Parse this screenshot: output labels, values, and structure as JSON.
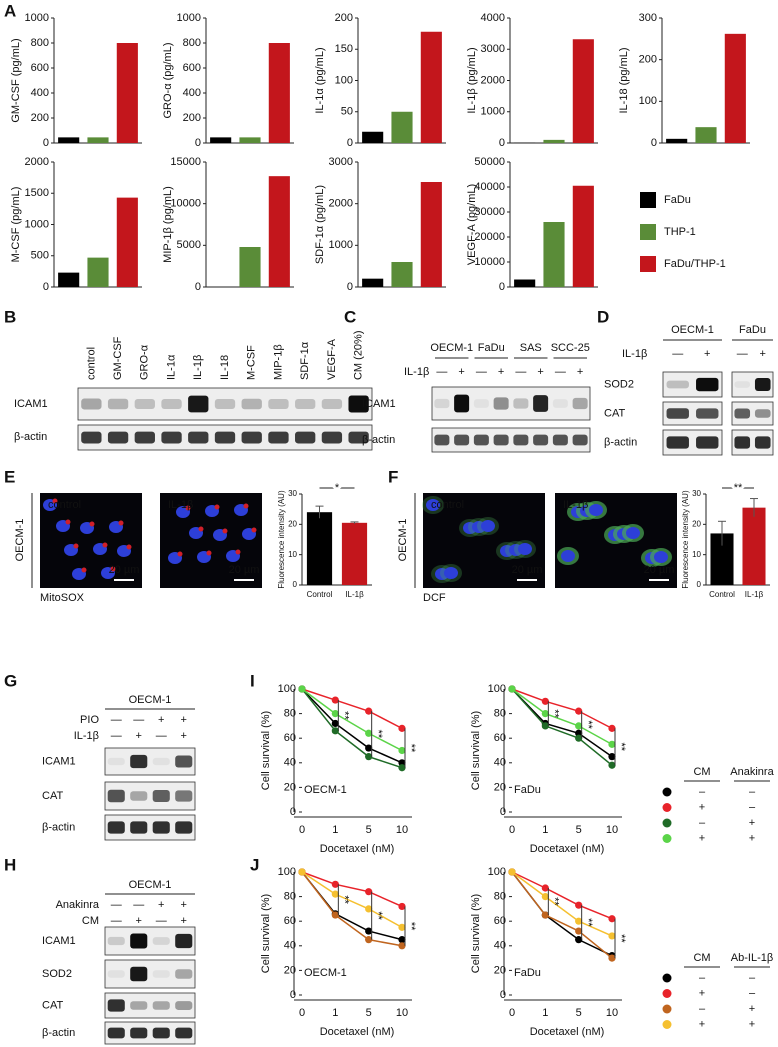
{
  "panel_labels": [
    "A",
    "B",
    "C",
    "D",
    "E",
    "F",
    "G",
    "H",
    "I",
    "J"
  ],
  "panel_a_legend": [
    {
      "name": "FaDu",
      "color": "#000000"
    },
    {
      "name": "THP-1",
      "color": "#5a8c38"
    },
    {
      "name": "FaDu/THP-1",
      "color": "#c3161c"
    }
  ],
  "chart_data": [
    {
      "type": "bar",
      "ylabel": "GM-CSF (pg/mL)",
      "values": [
        45,
        45,
        800
      ],
      "ylim": [
        0,
        1000
      ],
      "yticks": [
        0,
        200,
        400,
        600,
        800,
        1000
      ]
    },
    {
      "type": "bar",
      "ylabel": "GRO-α (pg/mL)",
      "values": [
        45,
        45,
        800
      ],
      "ylim": [
        0,
        1000
      ],
      "yticks": [
        0,
        200,
        400,
        600,
        800,
        1000
      ]
    },
    {
      "type": "bar",
      "ylabel": "IL-1α (pg/mL)",
      "values": [
        18,
        50,
        178
      ],
      "ylim": [
        0,
        200
      ],
      "yticks": [
        0,
        50,
        100,
        150,
        200
      ]
    },
    {
      "type": "bar",
      "ylabel": "IL-1β (pg/mL)",
      "values": [
        10,
        100,
        3320
      ],
      "ylim": [
        0,
        4000
      ],
      "yticks": [
        0,
        1000,
        2000,
        3000,
        4000
      ]
    },
    {
      "type": "bar",
      "ylabel": "IL-18 (pg/mL)",
      "values": [
        10,
        38,
        262
      ],
      "ylim": [
        0,
        300
      ],
      "yticks": [
        0,
        100,
        200,
        300
      ]
    },
    {
      "type": "bar",
      "ylabel": "M-CSF (pg/mL)",
      "values": [
        230,
        470,
        1430
      ],
      "ylim": [
        0,
        2000
      ],
      "yticks": [
        0,
        500,
        1000,
        1500,
        2000
      ]
    },
    {
      "type": "bar",
      "ylabel": "MIP-1β (pg/mL)",
      "values": [
        0,
        4800,
        13300
      ],
      "ylim": [
        0,
        15000
      ],
      "yticks": [
        0,
        5000,
        10000,
        15000
      ]
    },
    {
      "type": "bar",
      "ylabel": "SDF-1α (pg/mL)",
      "values": [
        200,
        600,
        2520
      ],
      "ylim": [
        0,
        3000
      ],
      "yticks": [
        0,
        1000,
        2000,
        3000
      ]
    },
    {
      "type": "bar",
      "ylabel": "VEGF-A (pg/mL)",
      "values": [
        3000,
        26000,
        40500
      ],
      "ylim": [
        0,
        50000
      ],
      "yticks": [
        0,
        10000,
        20000,
        30000,
        40000,
        50000
      ]
    },
    {
      "type": "bar",
      "ylabel": "Fluorescence intensity (AU)",
      "categories": [
        "Control",
        "IL-1β"
      ],
      "colors": [
        "#000000",
        "#c3161c"
      ],
      "values": [
        24,
        20.5
      ],
      "errors": [
        2,
        0.3
      ],
      "annotation": "*",
      "ylim": [
        0,
        30
      ],
      "yticks": [
        0,
        10,
        20,
        30
      ]
    },
    {
      "type": "bar",
      "ylabel": "Fluorescence intensity (AU)",
      "categories": [
        "Control",
        "IL-1β"
      ],
      "colors": [
        "#000000",
        "#c3161c"
      ],
      "values": [
        17,
        25.5
      ],
      "errors": [
        4,
        3
      ],
      "annotation": "**",
      "ylim": [
        0,
        30
      ],
      "yticks": [
        0,
        10,
        20,
        30
      ]
    },
    {
      "type": "line",
      "title": "OECM-1",
      "xlabel": "Docetaxel (nM)",
      "ylabel": "Cell survival (%)",
      "categories": [
        "0",
        "1",
        "5",
        "10"
      ],
      "ylim": [
        0,
        100
      ],
      "yticks": [
        0,
        20,
        40,
        60,
        80,
        100
      ],
      "stars": [
        null,
        "**",
        "**",
        "**"
      ],
      "series": [
        {
          "color": "#000000",
          "values": [
            100,
            72,
            52,
            40
          ]
        },
        {
          "color": "#e8232a",
          "values": [
            100,
            91,
            82,
            68
          ]
        },
        {
          "color": "#1f6b27",
          "values": [
            100,
            66,
            45,
            36
          ]
        },
        {
          "color": "#5bd448",
          "values": [
            100,
            80,
            64,
            50
          ]
        }
      ]
    },
    {
      "type": "line",
      "title": "FaDu",
      "xlabel": "Docetaxel (nM)",
      "ylabel": "Cell survival (%)",
      "categories": [
        "0",
        "1",
        "5",
        "10"
      ],
      "ylim": [
        0,
        100
      ],
      "yticks": [
        0,
        20,
        40,
        60,
        80,
        100
      ],
      "stars": [
        null,
        "**",
        "**",
        "**"
      ],
      "series": [
        {
          "color": "#000000",
          "values": [
            100,
            72,
            64,
            45
          ]
        },
        {
          "color": "#e8232a",
          "values": [
            100,
            90,
            82,
            68
          ]
        },
        {
          "color": "#1f6b27",
          "values": [
            100,
            70,
            60,
            38
          ]
        },
        {
          "color": "#5bd448",
          "values": [
            100,
            80,
            70,
            55
          ]
        }
      ]
    },
    {
      "type": "line",
      "title": "OECM-1",
      "xlabel": "Docetaxel (nM)",
      "ylabel": "Cell survival (%)",
      "categories": [
        "0",
        "1",
        "5",
        "10"
      ],
      "ylim": [
        0,
        100
      ],
      "yticks": [
        0,
        20,
        40,
        60,
        80,
        100
      ],
      "stars": [
        null,
        "**",
        "**",
        "**"
      ],
      "series": [
        {
          "color": "#000000",
          "values": [
            100,
            66,
            52,
            45
          ]
        },
        {
          "color": "#e8232a",
          "values": [
            100,
            90,
            84,
            72
          ]
        },
        {
          "color": "#c0651f",
          "values": [
            100,
            65,
            45,
            40
          ]
        },
        {
          "color": "#f5c030",
          "values": [
            100,
            82,
            70,
            55
          ]
        }
      ]
    },
    {
      "type": "line",
      "title": "FaDu",
      "xlabel": "Docetaxel (nM)",
      "ylabel": "Cell survival (%)",
      "categories": [
        "0",
        "1",
        "5",
        "10"
      ],
      "ylim": [
        0,
        100
      ],
      "yticks": [
        0,
        20,
        40,
        60,
        80,
        100
      ],
      "stars": [
        null,
        "**",
        "**",
        "**"
      ],
      "series": [
        {
          "color": "#000000",
          "values": [
            100,
            65,
            45,
            32
          ]
        },
        {
          "color": "#e8232a",
          "values": [
            100,
            87,
            73,
            62
          ]
        },
        {
          "color": "#c0651f",
          "values": [
            100,
            65,
            52,
            30
          ]
        },
        {
          "color": "#f5c030",
          "values": [
            100,
            80,
            60,
            48
          ]
        }
      ]
    }
  ],
  "blot_b": {
    "lanes": [
      "control",
      "GM-CSF",
      "GRO-α",
      "IL-1α",
      "IL-1β",
      "IL-18",
      "M-CSF",
      "MIP-1β",
      "SDF-1α",
      "VEGF-A",
      "CM (20%)"
    ],
    "rows": [
      "ICAM1",
      "β-actin"
    ]
  },
  "blot_c": {
    "groups": [
      "OECM-1",
      "FaDu",
      "SAS",
      "SCC-25"
    ],
    "treatment": "IL-1β",
    "signs": [
      "—",
      "+"
    ],
    "rows": [
      "ICAM1",
      "β-actin"
    ]
  },
  "blot_d": {
    "groups": [
      "OECM-1",
      "FaDu"
    ],
    "treatment": "IL-1β",
    "signs": [
      "—",
      "+"
    ],
    "rows": [
      "SOD2",
      "CAT",
      "β-actin"
    ]
  },
  "image_e": {
    "cell_line": "OECM-1",
    "conditions": [
      "control",
      "IL-1β"
    ],
    "scale": "20 µm",
    "stain": "MitoSOX"
  },
  "image_f": {
    "cell_line": "OECM-1",
    "conditions": [
      "control",
      "IL-1β"
    ],
    "scale": "20 µm",
    "stain": "DCF"
  },
  "blot_g": {
    "title": "OECM-1",
    "conditions": [
      {
        "label": "PIO",
        "signs": [
          "—",
          "—",
          "+",
          "+"
        ]
      },
      {
        "label": "IL-1β",
        "signs": [
          "—",
          "+",
          "—",
          "+"
        ]
      }
    ],
    "rows": [
      "ICAM1",
      "CAT",
      "β-actin"
    ]
  },
  "blot_h": {
    "title": "OECM-1",
    "conditions": [
      {
        "label": "Anakinra",
        "signs": [
          "—",
          "—",
          "+",
          "+"
        ]
      },
      {
        "label": "CM",
        "signs": [
          "—",
          "+",
          "—",
          "+"
        ]
      }
    ],
    "rows": [
      "ICAM1",
      "SOD2",
      "CAT",
      "β-actin"
    ]
  },
  "legend_i": {
    "headers": [
      "CM",
      "Anakinra"
    ],
    "rows": [
      [
        "–",
        "–"
      ],
      [
        "+",
        "–"
      ],
      [
        "–",
        "+"
      ],
      [
        "+",
        "+"
      ]
    ]
  },
  "legend_j": {
    "headers": [
      "CM",
      "Ab-IL-1β"
    ],
    "rows": [
      [
        "–",
        "–"
      ],
      [
        "+",
        "–"
      ],
      [
        "–",
        "+"
      ],
      [
        "+",
        "+"
      ]
    ]
  }
}
